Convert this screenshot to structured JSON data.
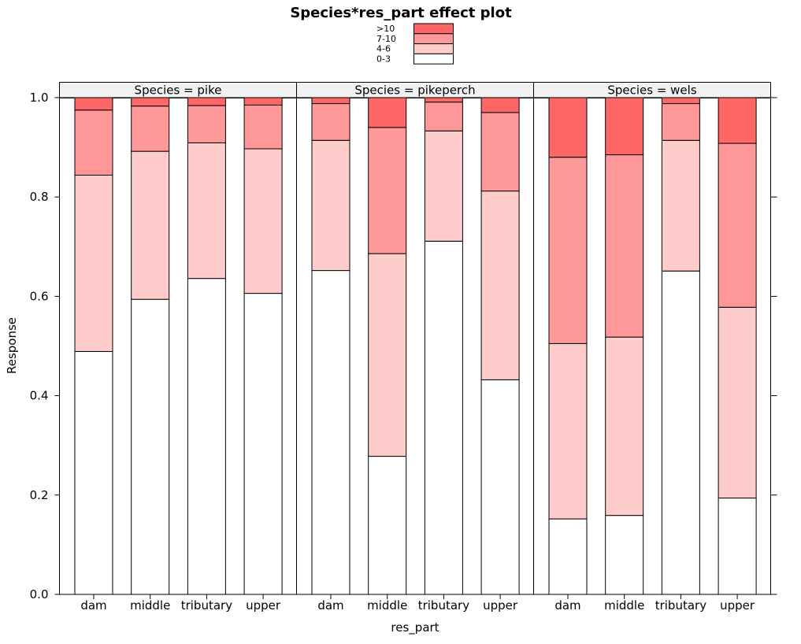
{
  "chart_data": {
    "type": "bar",
    "stacked": true,
    "title": "Species*res_part effect plot",
    "xlabel": "res_part",
    "ylabel": "Response",
    "ylim": [
      0,
      1
    ],
    "yticks": [
      "0.0",
      "0.2",
      "0.4",
      "0.6",
      "0.8",
      "1.0"
    ],
    "categories": [
      "dam",
      "middle",
      "tributary",
      "upper"
    ],
    "legend": {
      "placement": "top-center",
      "entries": [
        ">10",
        "7-10",
        "4-6",
        "0-3"
      ]
    },
    "colors": {
      "0-3": "#ffffff",
      "4-6": "#ffcccc",
      "7-10": "#ff9999",
      ">10": "#ff6666",
      "strip": "#f2f2f2"
    },
    "panels": [
      {
        "strip": "Species = pike",
        "series": [
          {
            "name": "0-3",
            "values": [
              0.489,
              0.594,
              0.636,
              0.606
            ]
          },
          {
            "name": "4-6",
            "values": [
              0.355,
              0.298,
              0.273,
              0.291
            ]
          },
          {
            "name": "7-10",
            "values": [
              0.131,
              0.091,
              0.075,
              0.088
            ]
          },
          {
            "name": ">10",
            "values": [
              0.025,
              0.017,
              0.016,
              0.015
            ]
          }
        ]
      },
      {
        "strip": "Species = pikeperch",
        "series": [
          {
            "name": "0-3",
            "values": [
              0.652,
              0.278,
              0.711,
              0.432
            ]
          },
          {
            "name": "4-6",
            "values": [
              0.262,
              0.408,
              0.222,
              0.38
            ]
          },
          {
            "name": "7-10",
            "values": [
              0.074,
              0.254,
              0.058,
              0.158
            ]
          },
          {
            "name": ">10",
            "values": [
              0.012,
              0.06,
              0.009,
              0.03
            ]
          }
        ]
      },
      {
        "strip": "Species = wels",
        "series": [
          {
            "name": "0-3",
            "values": [
              0.152,
              0.159,
              0.651,
              0.194
            ]
          },
          {
            "name": "4-6",
            "values": [
              0.353,
              0.359,
              0.263,
              0.384
            ]
          },
          {
            "name": "7-10",
            "values": [
              0.375,
              0.367,
              0.074,
              0.33
            ]
          },
          {
            "name": ">10",
            "values": [
              0.12,
              0.115,
              0.012,
              0.092
            ]
          }
        ]
      }
    ]
  }
}
